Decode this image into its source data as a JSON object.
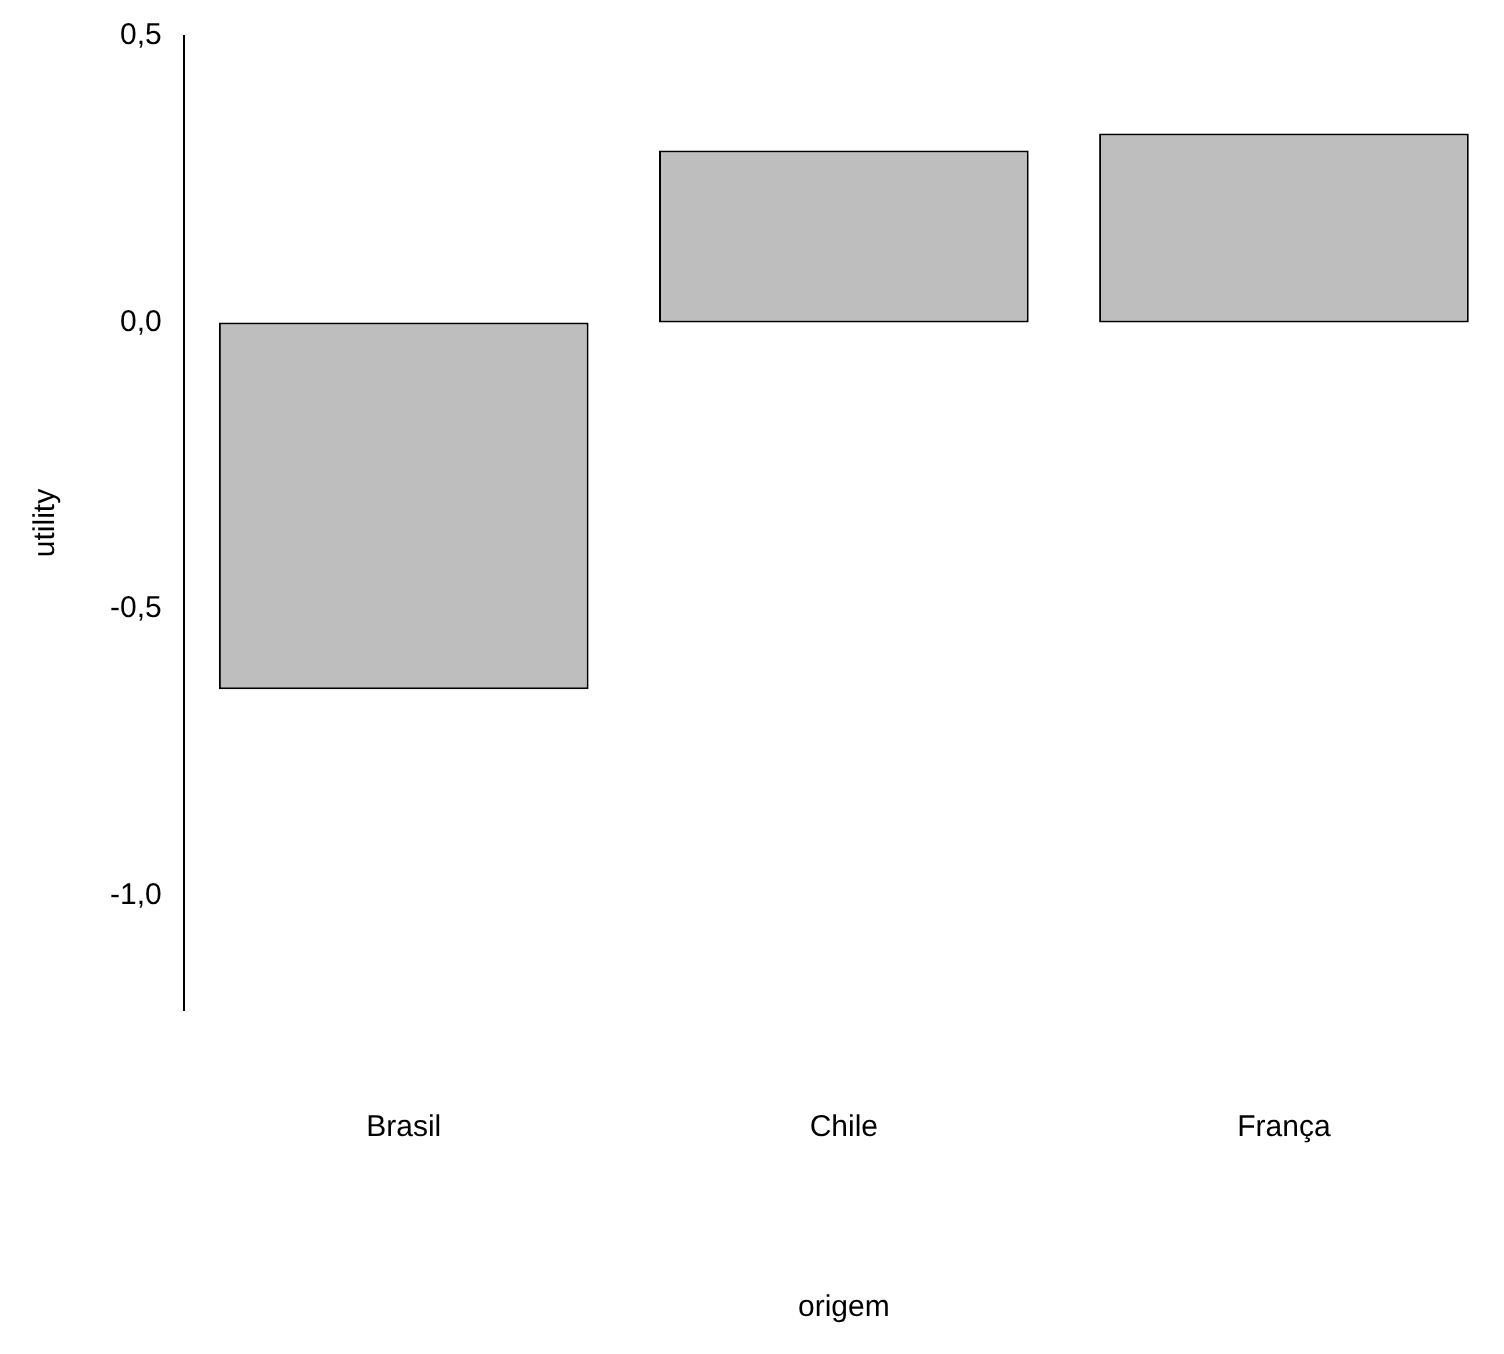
{
  "chart_data": {
    "type": "bar",
    "xlabel": "origem",
    "ylabel": "utility",
    "categories": [
      "Brasil",
      "Chile",
      "França"
    ],
    "values": [
      -0.64,
      0.3,
      0.33
    ],
    "color": "#bebebe",
    "ylim": [
      -1.2,
      0.5
    ],
    "yticks": [
      {
        "value": -1,
        "label": "-1,0"
      },
      {
        "value": -0.5,
        "label": "-0,5"
      },
      {
        "value": 0,
        "label": "0,0"
      },
      {
        "value": 0.5,
        "label": "0,5"
      }
    ],
    "grid": false,
    "legend": false
  }
}
